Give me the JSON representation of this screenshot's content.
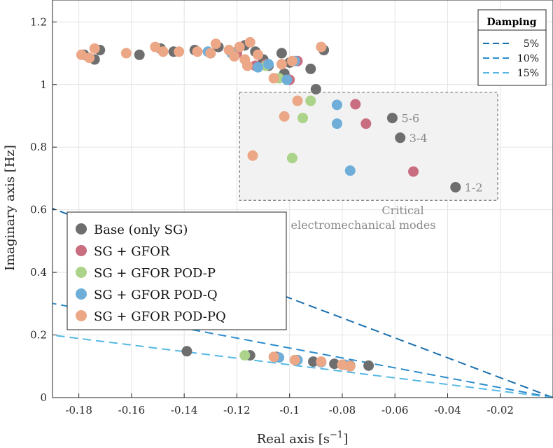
{
  "chart_data": {
    "type": "scatter",
    "xlabel": "Real axis [s",
    "xlabel_sup": "−1",
    "xlabel_close": "]",
    "ylabel": "Imaginary axis [Hz]",
    "xlim": [
      -0.19,
      0.0
    ],
    "ylim": [
      0,
      1.27
    ],
    "xticks": [
      -0.18,
      -0.16,
      -0.14,
      -0.12,
      -0.1,
      -0.08,
      -0.06,
      -0.04,
      -0.02
    ],
    "xtick_labels": [
      "-0.18",
      "-0.16",
      "-0.14",
      "-0.12",
      "-0.1",
      "-0.08",
      "-0.06",
      "-0.04",
      "-0.02"
    ],
    "yticks": [
      0,
      0.2,
      0.4,
      0.6,
      0.8,
      1.0,
      1.2
    ],
    "ytick_labels": [
      "0",
      "0.2",
      "0.4",
      "0.6",
      "0.8",
      "1",
      "1.2"
    ],
    "grid": true,
    "legend_position": "left-middle",
    "series": [
      {
        "name": "Base (only SG)",
        "color": "#6e6e6e",
        "points": [
          [
            -0.178,
            1.095
          ],
          [
            -0.174,
            1.08
          ],
          [
            -0.172,
            1.11
          ],
          [
            -0.157,
            1.095
          ],
          [
            -0.149,
            1.115
          ],
          [
            -0.144,
            1.105
          ],
          [
            -0.136,
            1.11
          ],
          [
            -0.13,
            1.1
          ],
          [
            -0.127,
            1.12
          ],
          [
            -0.12,
            1.105
          ],
          [
            -0.117,
            1.125
          ],
          [
            -0.113,
            1.105
          ],
          [
            -0.11,
            1.08
          ],
          [
            -0.108,
            1.06
          ],
          [
            -0.103,
            1.1
          ],
          [
            -0.102,
            1.035
          ],
          [
            -0.1,
            1.07
          ],
          [
            -0.092,
            1.05
          ],
          [
            -0.09,
            0.985
          ],
          [
            -0.087,
            1.11
          ],
          [
            -0.061,
            0.893
          ],
          [
            -0.058,
            0.83
          ],
          [
            -0.037,
            0.672
          ],
          [
            -0.139,
            0.148
          ],
          [
            -0.115,
            0.135
          ],
          [
            -0.105,
            0.13
          ],
          [
            -0.091,
            0.115
          ],
          [
            -0.083,
            0.108
          ],
          [
            -0.077,
            0.102
          ],
          [
            -0.07,
            0.102
          ]
        ]
      },
      {
        "name": "SG + GFOR",
        "color": "#c96d80",
        "points": [
          [
            -0.12,
            1.1
          ],
          [
            -0.113,
            1.06
          ],
          [
            -0.1,
            1.015
          ],
          [
            -0.097,
            1.075
          ],
          [
            -0.075,
            0.937
          ],
          [
            -0.071,
            0.875
          ],
          [
            -0.053,
            0.722
          ],
          [
            -0.109,
            1.065
          ]
        ]
      },
      {
        "name": "SG + GFOR POD-P",
        "color": "#acd38a",
        "points": [
          [
            -0.104,
            1.02
          ],
          [
            -0.092,
            0.948
          ],
          [
            -0.095,
            0.893
          ],
          [
            -0.099,
            0.765
          ],
          [
            -0.117,
            0.135
          ],
          [
            -0.109,
            1.06
          ]
        ]
      },
      {
        "name": "SG + GFOR POD-Q",
        "color": "#6eaed9",
        "points": [
          [
            -0.122,
            1.1
          ],
          [
            -0.112,
            1.055
          ],
          [
            -0.108,
            1.065
          ],
          [
            -0.101,
            1.015
          ],
          [
            -0.098,
            1.075
          ],
          [
            -0.082,
            0.935
          ],
          [
            -0.082,
            0.875
          ],
          [
            -0.077,
            0.725
          ],
          [
            -0.104,
            0.128
          ],
          [
            -0.097,
            0.12
          ],
          [
            -0.088,
            0.113
          ],
          [
            -0.079,
            0.105
          ],
          [
            -0.131,
            1.105
          ]
        ]
      },
      {
        "name": "SG + GFOR POD-PQ",
        "color": "#eba786",
        "points": [
          [
            -0.179,
            1.095
          ],
          [
            -0.176,
            1.085
          ],
          [
            -0.174,
            1.115
          ],
          [
            -0.162,
            1.1
          ],
          [
            -0.151,
            1.12
          ],
          [
            -0.148,
            1.105
          ],
          [
            -0.142,
            1.105
          ],
          [
            -0.135,
            1.105
          ],
          [
            -0.128,
            1.13
          ],
          [
            -0.123,
            1.11
          ],
          [
            -0.121,
            1.09
          ],
          [
            -0.119,
            1.12
          ],
          [
            -0.117,
            1.08
          ],
          [
            -0.115,
            1.135
          ],
          [
            -0.112,
            1.095
          ],
          [
            -0.106,
            1.02
          ],
          [
            -0.103,
            1.065
          ],
          [
            -0.099,
            1.075
          ],
          [
            -0.097,
            0.948
          ],
          [
            -0.102,
            0.898
          ],
          [
            -0.114,
            0.773
          ],
          [
            -0.106,
            0.13
          ],
          [
            -0.098,
            0.12
          ],
          [
            -0.088,
            0.115
          ],
          [
            -0.08,
            0.105
          ],
          [
            -0.077,
            0.1
          ],
          [
            -0.116,
            1.06
          ],
          [
            -0.13,
            1.1
          ],
          [
            -0.088,
            1.12
          ]
        ]
      }
    ],
    "damping_lines": [
      {
        "label": "5%",
        "zeta": 0.05,
        "color": "#1a6fae"
      },
      {
        "label": "10%",
        "zeta": 0.1,
        "color": "#2b8ccc"
      },
      {
        "label": "15%",
        "zeta": 0.15,
        "color": "#55b8e3"
      }
    ],
    "damping_legend_title": "Damping",
    "critical_region": {
      "x": [
        -0.119,
        -0.021
      ],
      "y": [
        0.63,
        0.975
      ],
      "label_line1": "Critical",
      "label_line2": "electromechanical modes"
    },
    "mode_labels": [
      {
        "text": "5-6",
        "x": -0.061,
        "y": 0.893
      },
      {
        "text": "3-4",
        "x": -0.058,
        "y": 0.83
      },
      {
        "text": "1-2",
        "x": -0.037,
        "y": 0.672
      }
    ]
  }
}
